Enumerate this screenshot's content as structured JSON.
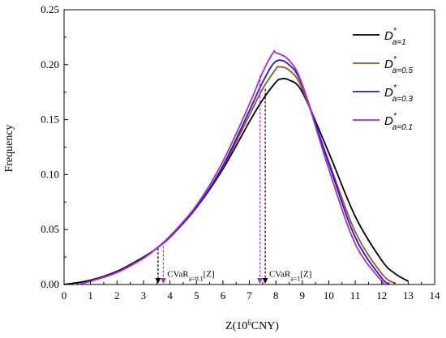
{
  "chart_data": {
    "type": "line",
    "xlabel_main": "Z(10",
    "xlabel_sup": "6",
    "xlabel_end": "CNY)",
    "ylabel": "Frequency",
    "xlim": [
      0,
      14
    ],
    "ylim": [
      0,
      0.25
    ],
    "x_ticks": [
      0,
      1,
      2,
      3,
      4,
      5,
      6,
      7,
      8,
      9,
      10,
      11,
      12,
      13,
      14
    ],
    "y_ticks": [
      0.0,
      0.05,
      0.1,
      0.15,
      0.2,
      0.25
    ],
    "y_tick_labels": [
      "0.00",
      "0.05",
      "0.10",
      "0.15",
      "0.20",
      "0.25"
    ],
    "grid": false,
    "legend_position": "top-right",
    "series": [
      {
        "legend_main": "D",
        "legend_sup": "*",
        "legend_sub": "a=1",
        "color": "#000000",
        "x": [
          0.0,
          1.0,
          2.0,
          3.0,
          3.5,
          4.0,
          5.0,
          6.0,
          7.0,
          7.5,
          8.0,
          8.2,
          8.5,
          9.0,
          10.0,
          11.0,
          12.0,
          12.5,
          13.0
        ],
        "y": [
          0.0,
          0.004,
          0.012,
          0.025,
          0.033,
          0.044,
          0.07,
          0.105,
          0.148,
          0.168,
          0.184,
          0.187,
          0.186,
          0.175,
          0.12,
          0.062,
          0.022,
          0.01,
          0.003
        ]
      },
      {
        "legend_main": "D",
        "legend_sup": "*",
        "legend_sub": "a=0.5",
        "color": "#a0522d",
        "x": [
          0.5,
          1.0,
          2.0,
          3.0,
          3.5,
          4.0,
          5.0,
          6.0,
          7.0,
          7.5,
          8.0,
          8.1,
          8.5,
          9.0,
          10.0,
          11.0,
          12.0,
          12.5
        ],
        "y": [
          0.0,
          0.003,
          0.011,
          0.024,
          0.033,
          0.043,
          0.07,
          0.107,
          0.154,
          0.178,
          0.196,
          0.198,
          0.195,
          0.178,
          0.112,
          0.048,
          0.01,
          0.001
        ]
      },
      {
        "legend_main": "D",
        "legend_sup": "*",
        "legend_sub": "a=0.3",
        "color": "#1f1fb4",
        "x": [
          0.5,
          1.0,
          2.0,
          3.0,
          3.5,
          4.0,
          5.0,
          6.0,
          7.0,
          7.5,
          8.0,
          8.5,
          9.0,
          10.0,
          11.0,
          12.0,
          12.3
        ],
        "y": [
          0.0,
          0.003,
          0.011,
          0.024,
          0.033,
          0.043,
          0.07,
          0.108,
          0.158,
          0.184,
          0.203,
          0.2,
          0.181,
          0.11,
          0.043,
          0.006,
          0.001
        ]
      },
      {
        "legend_main": "D",
        "legend_sup": "*",
        "legend_sub": "a=0.1",
        "color": "#b026e6",
        "x": [
          0.5,
          1.0,
          2.0,
          3.0,
          3.5,
          4.0,
          5.0,
          6.0,
          7.0,
          7.5,
          7.9,
          8.0,
          8.5,
          9.0,
          10.0,
          11.0,
          12.0,
          12.1
        ],
        "y": [
          0.0,
          0.003,
          0.011,
          0.024,
          0.033,
          0.044,
          0.072,
          0.112,
          0.164,
          0.193,
          0.211,
          0.211,
          0.204,
          0.182,
          0.105,
          0.037,
          0.003,
          0.001
        ]
      }
    ],
    "annotations": [
      {
        "label_main": "CVaR",
        "label_sub": "a=0.1",
        "label_end": "[Z]",
        "x_text": 3.9,
        "y_text": 0.007
      },
      {
        "label_main": "CVaR",
        "label_sub": "a=1",
        "label_end": "[Z]",
        "x_text": 7.75,
        "y_text": 0.007
      }
    ],
    "markers": [
      {
        "x": 3.55,
        "y": 0.033,
        "color": "#000000"
      },
      {
        "x": 3.75,
        "y": 0.035,
        "color": "#b026e6"
      },
      {
        "x": 7.4,
        "y": 0.19,
        "color": "#b026e6"
      },
      {
        "x": 7.6,
        "y": 0.178,
        "color": "#000000"
      }
    ]
  }
}
